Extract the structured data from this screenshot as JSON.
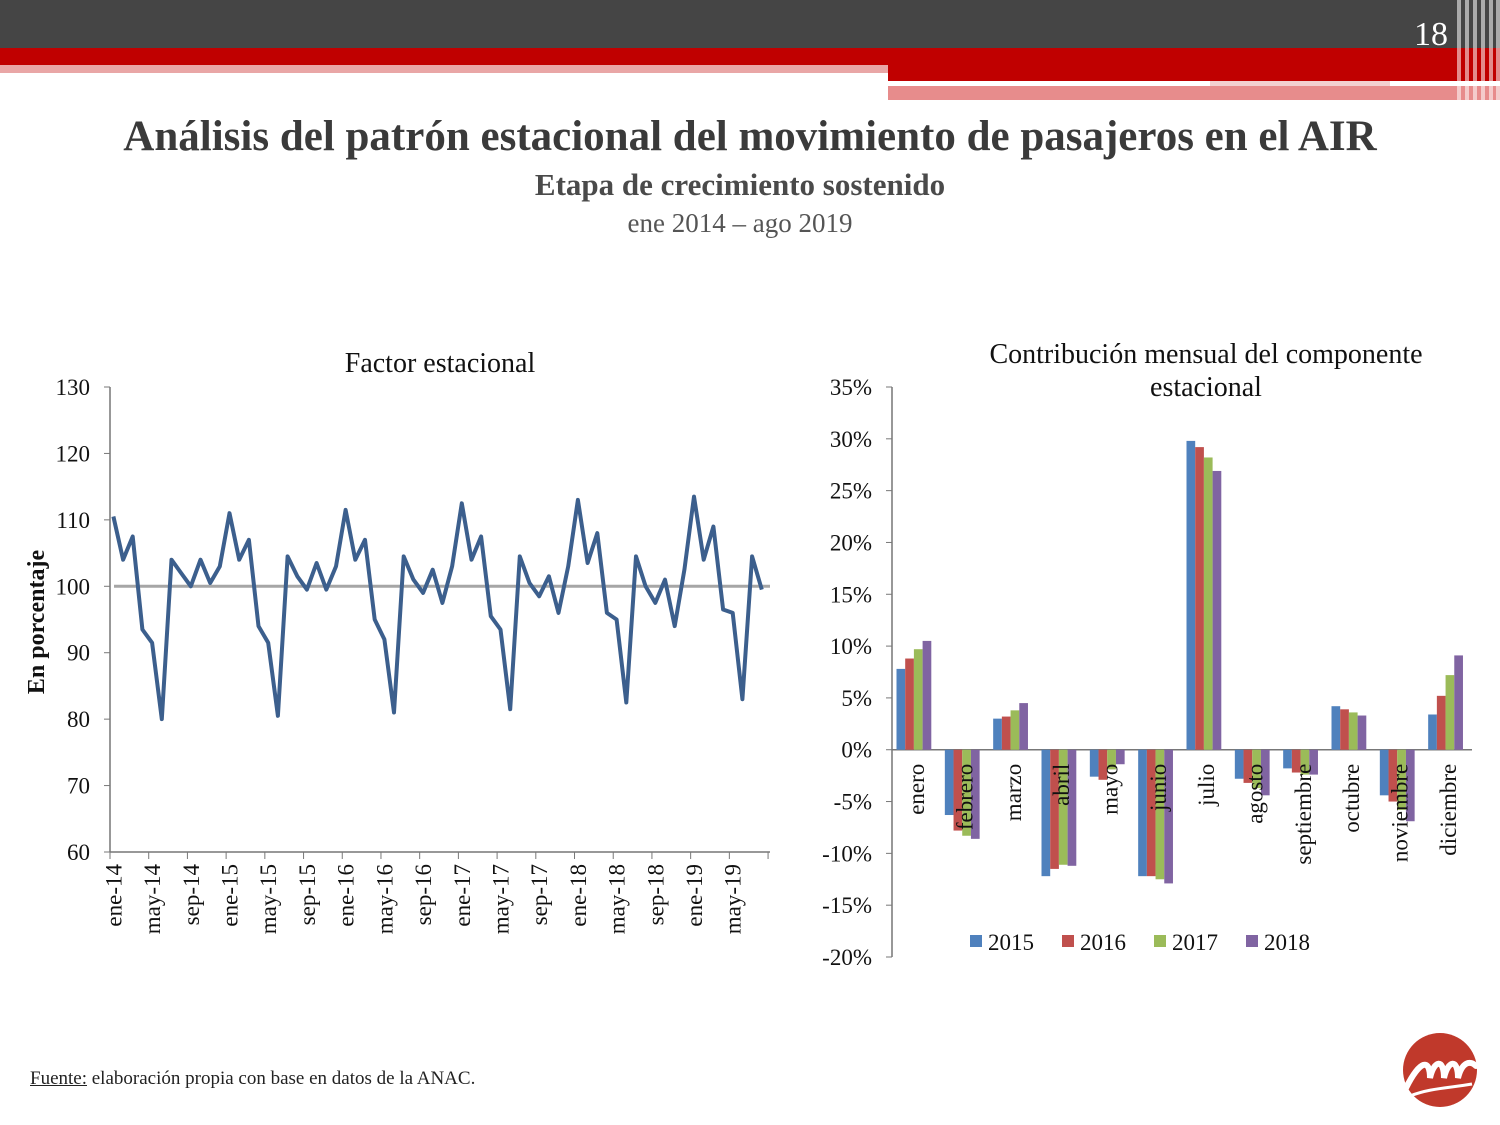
{
  "slide": {
    "page_number": "18",
    "title": "Análisis del patrón estacional del movimiento de pasajeros en el AIR",
    "subtitle": "Etapa de crecimiento sostenido",
    "period": "ene 2014 – ago 2019",
    "footer_label": "Fuente:",
    "footer_text": " elaboración propia con base en datos de la ANAC."
  },
  "colors": {
    "line": "#3c5f8d",
    "baseline": "#a6a6a6",
    "s2015": "#4f81bd",
    "s2016": "#c0504d",
    "s2017": "#9bbb59",
    "s2018": "#8064a2",
    "brand_red": "#c00000"
  },
  "chart_data": [
    {
      "type": "line",
      "title": "Factor estacional",
      "ylabel": "En porcentaje",
      "ylim": [
        60,
        130
      ],
      "yticks": [
        130,
        120,
        110,
        100,
        90,
        80,
        70,
        60
      ],
      "baseline": 100,
      "xtick_labels": [
        "ene-14",
        "may-14",
        "sep-14",
        "ene-15",
        "may-15",
        "sep-15",
        "ene-16",
        "may-16",
        "sep-16",
        "ene-17",
        "may-17",
        "sep-17",
        "ene-18",
        "may-18",
        "sep-18",
        "ene-19",
        "may-19"
      ],
      "series": [
        {
          "values": [
            110.5,
            104,
            107.5,
            93.5,
            91.5,
            80,
            104,
            102,
            100,
            104,
            100.5,
            103,
            111,
            104,
            107,
            94,
            91.5,
            80.5,
            104.5,
            101.5,
            99.5,
            103.5,
            99.5,
            103,
            111.5,
            104,
            107,
            95,
            92,
            81,
            104.5,
            101,
            99,
            102.5,
            97.5,
            103,
            112.5,
            104,
            107.5,
            95.5,
            93.5,
            81.5,
            104.5,
            100.5,
            98.5,
            101.5,
            96,
            103,
            113,
            103.5,
            108,
            96,
            95,
            82.5,
            104.5,
            100,
            97.5,
            101,
            94,
            102.5,
            113.5,
            104,
            109,
            96.5,
            96,
            83,
            104.5,
            99.5
          ]
        }
      ]
    },
    {
      "type": "bar",
      "title": "Contribución mensual del componente estacional",
      "ylim": [
        -20,
        35
      ],
      "yticks": [
        "35%",
        "30%",
        "25%",
        "20%",
        "15%",
        "10%",
        "5%",
        "0%",
        "-5%",
        "-10%",
        "-15%",
        "-20%"
      ],
      "categories": [
        "enero",
        "febrero",
        "marzo",
        "abril",
        "mayo",
        "junio",
        "julio",
        "agosto",
        "septiembre",
        "octubre",
        "noviembre",
        "diciembre"
      ],
      "legend_position": "bottom",
      "series": [
        {
          "name": "2015",
          "values": [
            7.8,
            -6.3,
            3.0,
            -12.2,
            -2.6,
            -12.2,
            29.8,
            -2.8,
            -1.8,
            4.2,
            -4.4,
            3.4
          ]
        },
        {
          "name": "2016",
          "values": [
            8.8,
            -7.8,
            3.2,
            -11.5,
            -2.9,
            -12.2,
            29.2,
            -3.2,
            -2.2,
            3.9,
            -5.0,
            5.2
          ]
        },
        {
          "name": "2017",
          "values": [
            9.7,
            -8.3,
            3.8,
            -11.1,
            -1.9,
            -12.5,
            28.2,
            -3.7,
            -2.4,
            3.6,
            -5.8,
            7.2
          ]
        },
        {
          "name": "2018",
          "values": [
            10.5,
            -8.6,
            4.5,
            -11.2,
            -1.4,
            -12.9,
            26.9,
            -4.4,
            -2.4,
            3.3,
            -6.9,
            9.1
          ]
        }
      ]
    }
  ]
}
